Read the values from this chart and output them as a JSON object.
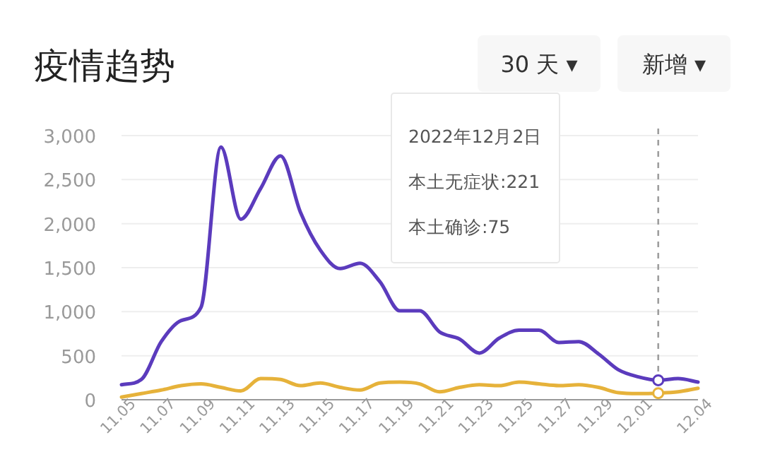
{
  "chart_data": {
    "type": "line",
    "title": "疫情趋势",
    "x": [
      "--11-05",
      "--11-06",
      "--11-07",
      "--11-08",
      "--11-09",
      "--11-10",
      "--11-11",
      "--11-12",
      "--11-13",
      "--11-14",
      "--11-15",
      "--11-16",
      "--11-17",
      "--11-18",
      "--11-19",
      "--11-20",
      "--11-21",
      "--11-22",
      "--11-23",
      "--11-24",
      "--11-25",
      "--11-26",
      "--11-27",
      "--11-28",
      "--11-29",
      "--11-30",
      "--12-01",
      "--12-02",
      "--12-03",
      "--12-04"
    ],
    "series": [
      {
        "color": "#5b3bbd",
        "values": [
          170,
          230,
          660,
          900,
          1050,
          2870,
          2050,
          2400,
          2770,
          2130,
          1700,
          1490,
          1550,
          1340,
          1010,
          1010,
          770,
          690,
          530,
          700,
          790,
          790,
          650,
          660,
          520,
          340,
          260,
          221,
          240,
          200
        ]
      },
      {
        "color": "#e6b23a",
        "values": [
          30,
          70,
          110,
          160,
          180,
          140,
          100,
          240,
          230,
          160,
          190,
          140,
          110,
          190,
          200,
          180,
          90,
          140,
          170,
          160,
          200,
          180,
          160,
          170,
          140,
          80,
          70,
          75,
          90,
          130
        ]
      }
    ],
    "xlim": [
      "--11-05",
      "--12-04"
    ],
    "xticks": [
      {
        "value": "--11-05",
        "label": "11.05"
      },
      {
        "value": "--11-07",
        "label": "11.07"
      },
      {
        "value": "--11-09",
        "label": "11.09"
      },
      {
        "value": "--11-11",
        "label": "11.11"
      },
      {
        "value": "--11-13",
        "label": "11.13"
      },
      {
        "value": "--11-15",
        "label": "11.15"
      },
      {
        "value": "--11-17",
        "label": "11.17"
      },
      {
        "value": "--11-19",
        "label": "11.19"
      },
      {
        "value": "--11-21",
        "label": "11.21"
      },
      {
        "value": "--11-23",
        "label": "11.23"
      },
      {
        "value": "--11-25",
        "label": "11.25"
      },
      {
        "value": "--11-27",
        "label": "11.27"
      },
      {
        "value": "--11-29",
        "label": "11.29"
      },
      {
        "value": "--12-01",
        "label": "12.01"
      },
      {
        "value": "--12-04",
        "label": "12.04"
      }
    ],
    "ylim": [
      0,
      3000
    ],
    "yticks": [
      0,
      {
        "value": 500,
        "label": "500"
      },
      {
        "value": 1000,
        "label": "1,000"
      },
      {
        "value": 1500,
        "label": "1,500"
      },
      {
        "value": 2000,
        "label": "2,000"
      },
      {
        "value": 2500,
        "label": "2,500"
      },
      {
        "value": 3000,
        "label": "3,000"
      }
    ],
    "grid": "y",
    "marker": "none",
    "line_style": "solid",
    "ref_lines": [
      {
        "axis": "x",
        "value": "--12-02",
        "color": "#9e9e9e",
        "line_style": "dashed"
      }
    ],
    "annotations": [
      "30 天 ▾",
      "新增 ▾",
      "2022年12月2日",
      "本土无症状:221",
      "本土确诊:75"
    ]
  }
}
